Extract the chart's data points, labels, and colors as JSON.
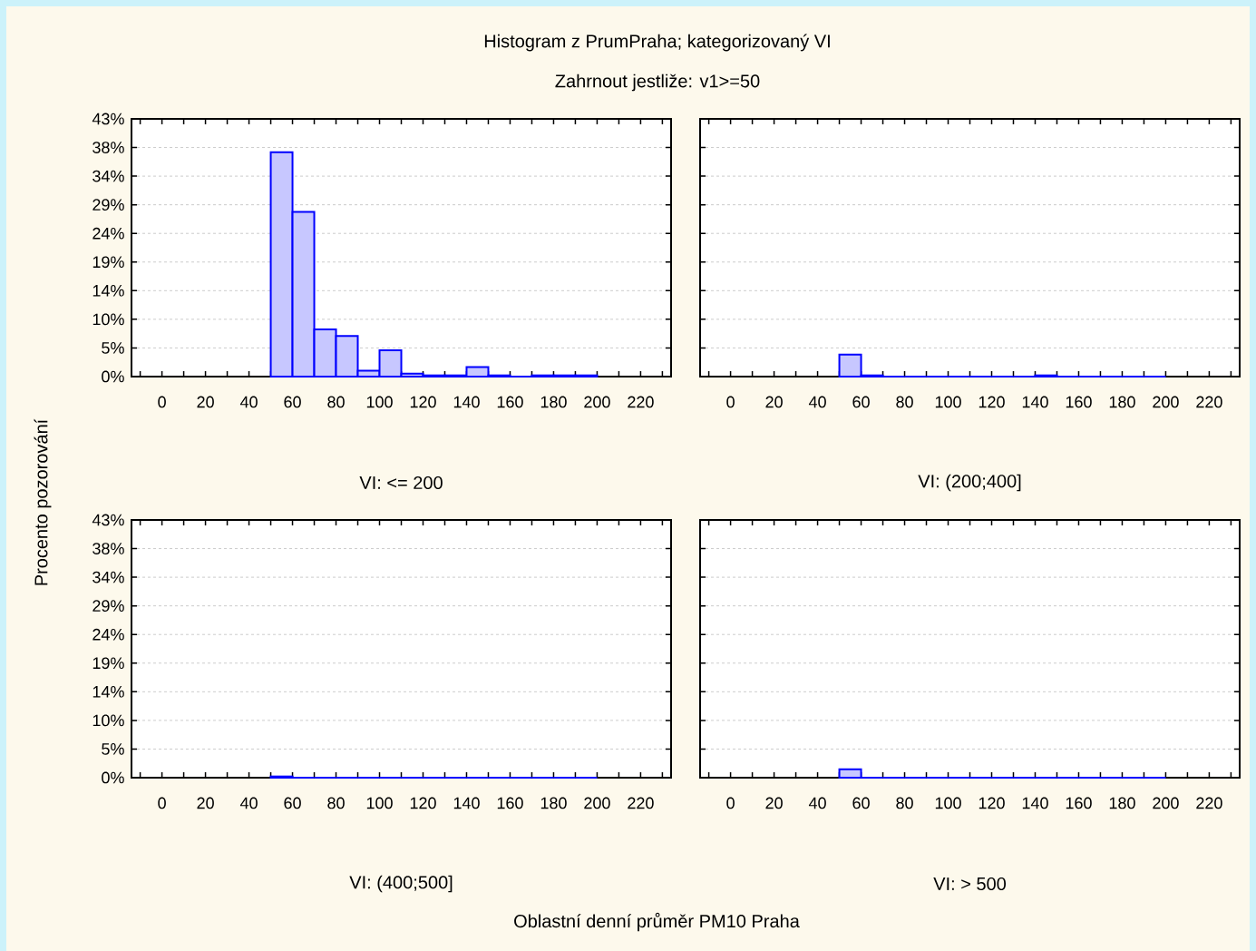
{
  "chart_data": [
    {
      "type": "histogram",
      "title": "Histogram z PrumPraha; kategorizovaný VI",
      "subtitle": "Zahrnout jestliže: v1>=50",
      "ylabel": "Procento pozorování",
      "xlabel": "VI: <= 200",
      "color": "#0000ff",
      "grid": "y",
      "bins": [
        50,
        60,
        70,
        80,
        90,
        100,
        110,
        120,
        130,
        140,
        150,
        160,
        170,
        180,
        190,
        200
      ],
      "values": [
        37.6,
        27.6,
        7.9,
        6.8,
        1.0,
        4.4,
        0.5,
        0.2,
        0.2,
        1.6,
        0.2,
        0,
        0.2,
        0.2,
        0.2
      ],
      "xlim": [
        -14,
        234
      ],
      "ylim": [
        0,
        43.2
      ],
      "xticks": [
        {
          "value": -10,
          "label": null
        },
        0,
        {
          "value": 10,
          "label": null
        },
        20,
        {
          "value": 30,
          "label": null
        },
        40,
        {
          "value": 50,
          "label": null
        },
        60,
        {
          "value": 70,
          "label": null
        },
        80,
        {
          "value": 90,
          "label": null
        },
        100,
        {
          "value": 110,
          "label": null
        },
        120,
        {
          "value": 130,
          "label": null
        },
        140,
        {
          "value": 150,
          "label": null
        },
        160,
        {
          "value": 170,
          "label": null
        },
        180,
        {
          "value": 190,
          "label": null
        },
        200,
        {
          "value": 210,
          "label": null
        },
        220,
        {
          "value": 230,
          "label": null
        }
      ],
      "yticks": [
        {
          "value": 0,
          "label": "0%"
        },
        {
          "value": 4.8,
          "label": "5%"
        },
        {
          "value": 9.6,
          "label": "10%"
        },
        {
          "value": 14.4,
          "label": "14%"
        },
        {
          "value": 19.2,
          "label": "19%"
        },
        {
          "value": 24,
          "label": "24%"
        },
        {
          "value": 28.8,
          "label": "29%"
        },
        {
          "value": 33.6,
          "label": "34%"
        },
        {
          "value": 38.4,
          "label": "38%"
        },
        {
          "value": 43.2,
          "label": "43%"
        }
      ]
    },
    {
      "type": "histogram",
      "xlabel": "VI: (200;400]",
      "color": "#0000ff",
      "grid": "y",
      "bins": [
        50,
        60,
        70,
        80,
        90,
        100,
        110,
        120,
        130,
        140,
        150,
        160,
        170,
        180,
        190,
        200
      ],
      "values": [
        3.7,
        0.2,
        0,
        0,
        0,
        0,
        0,
        0,
        0,
        0.2,
        0,
        0,
        0,
        0,
        0
      ],
      "xlim": [
        -14,
        234
      ],
      "ylim": [
        0,
        43.2
      ],
      "xticks": [
        {
          "value": -10,
          "label": null
        },
        0,
        {
          "value": 10,
          "label": null
        },
        20,
        {
          "value": 30,
          "label": null
        },
        40,
        {
          "value": 50,
          "label": null
        },
        60,
        {
          "value": 70,
          "label": null
        },
        80,
        {
          "value": 90,
          "label": null
        },
        100,
        {
          "value": 110,
          "label": null
        },
        120,
        {
          "value": 130,
          "label": null
        },
        140,
        {
          "value": 150,
          "label": null
        },
        160,
        {
          "value": 170,
          "label": null
        },
        180,
        {
          "value": 190,
          "label": null
        },
        200,
        {
          "value": 210,
          "label": null
        },
        220,
        {
          "value": 230,
          "label": null
        }
      ],
      "yticks": [
        {
          "value": 0,
          "label": null
        },
        {
          "value": 4.8,
          "label": null
        },
        {
          "value": 9.6,
          "label": null
        },
        {
          "value": 14.4,
          "label": null
        },
        {
          "value": 19.2,
          "label": null
        },
        {
          "value": 24,
          "label": null
        },
        {
          "value": 28.8,
          "label": null
        },
        {
          "value": 33.6,
          "label": null
        },
        {
          "value": 38.4,
          "label": null
        },
        {
          "value": 43.2,
          "label": null
        }
      ],
      "tick_labels": "x"
    },
    {
      "type": "histogram",
      "xlabel": "VI: (400;500]",
      "color": "#0000ff",
      "grid": "y",
      "annotations": [
        "Oblastní denní průměr PM10 Praha"
      ],
      "bins": [
        50,
        60,
        70,
        80,
        90,
        100,
        110,
        120,
        130,
        140,
        150,
        160,
        170,
        180,
        190,
        200
      ],
      "values": [
        0.2,
        0,
        0,
        0,
        0,
        0,
        0,
        0,
        0,
        0,
        0,
        0,
        0,
        0,
        0
      ],
      "xlim": [
        -14,
        234
      ],
      "ylim": [
        0,
        43.2
      ],
      "xticks": [
        {
          "value": -10,
          "label": null
        },
        0,
        {
          "value": 10,
          "label": null
        },
        20,
        {
          "value": 30,
          "label": null
        },
        40,
        {
          "value": 50,
          "label": null
        },
        60,
        {
          "value": 70,
          "label": null
        },
        80,
        {
          "value": 90,
          "label": null
        },
        100,
        {
          "value": 110,
          "label": null
        },
        120,
        {
          "value": 130,
          "label": null
        },
        140,
        {
          "value": 150,
          "label": null
        },
        160,
        {
          "value": 170,
          "label": null
        },
        180,
        {
          "value": 190,
          "label": null
        },
        200,
        {
          "value": 210,
          "label": null
        },
        220,
        {
          "value": 230,
          "label": null
        }
      ],
      "yticks": [
        {
          "value": 0,
          "label": "0%"
        },
        {
          "value": 4.8,
          "label": "5%"
        },
        {
          "value": 9.6,
          "label": "10%"
        },
        {
          "value": 14.4,
          "label": "14%"
        },
        {
          "value": 19.2,
          "label": "19%"
        },
        {
          "value": 24,
          "label": "24%"
        },
        {
          "value": 28.8,
          "label": "29%"
        },
        {
          "value": 33.6,
          "label": "34%"
        },
        {
          "value": 38.4,
          "label": "38%"
        },
        {
          "value": 43.2,
          "label": "43%"
        }
      ]
    },
    {
      "type": "histogram",
      "xlabel": "VI: > 500",
      "color": "#0000ff",
      "grid": "y",
      "bins": [
        50,
        60,
        70,
        80,
        90,
        100,
        110,
        120,
        130,
        140,
        150,
        160,
        170,
        180,
        190,
        200
      ],
      "values": [
        1.4,
        0,
        0,
        0,
        0,
        0,
        0,
        0,
        0,
        0,
        0,
        0,
        0,
        0,
        0
      ],
      "xlim": [
        -14,
        234
      ],
      "ylim": [
        0,
        43.2
      ],
      "xticks": [
        {
          "value": -10,
          "label": null
        },
        0,
        {
          "value": 10,
          "label": null
        },
        20,
        {
          "value": 30,
          "label": null
        },
        40,
        {
          "value": 50,
          "label": null
        },
        60,
        {
          "value": 70,
          "label": null
        },
        80,
        {
          "value": 90,
          "label": null
        },
        100,
        {
          "value": 110,
          "label": null
        },
        120,
        {
          "value": 130,
          "label": null
        },
        140,
        {
          "value": 150,
          "label": null
        },
        160,
        {
          "value": 170,
          "label": null
        },
        180,
        {
          "value": 190,
          "label": null
        },
        200,
        {
          "value": 210,
          "label": null
        },
        220,
        {
          "value": 230,
          "label": null
        }
      ],
      "yticks": [
        {
          "value": 0,
          "label": null
        },
        {
          "value": 4.8,
          "label": null
        },
        {
          "value": 9.6,
          "label": null
        },
        {
          "value": 14.4,
          "label": null
        },
        {
          "value": 19.2,
          "label": null
        },
        {
          "value": 24,
          "label": null
        },
        {
          "value": 28.8,
          "label": null
        },
        {
          "value": 33.6,
          "label": null
        },
        {
          "value": 38.4,
          "label": null
        },
        {
          "value": 43.2,
          "label": null
        }
      ],
      "tick_labels": "x"
    }
  ]
}
